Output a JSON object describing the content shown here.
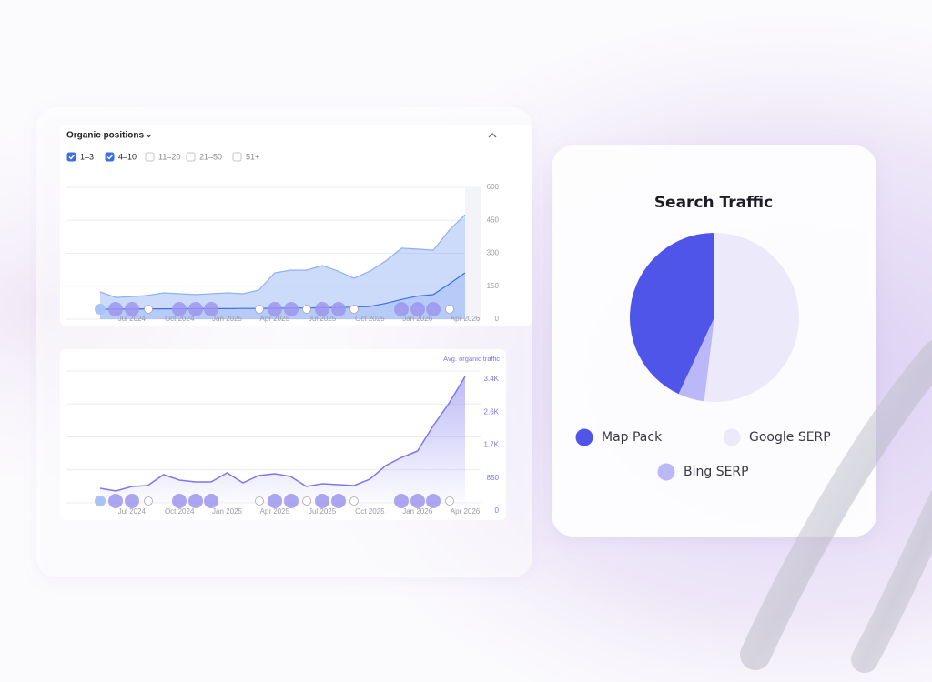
{
  "chart_data": [
    {
      "type": "area",
      "title": "Organic positions",
      "categories": [
        null,
        null,
        "Jul 2024",
        null,
        null,
        "Oct 2024",
        null,
        null,
        "Jan 2025",
        null,
        null,
        "Apr 2025",
        null,
        null,
        "Jul 2025",
        null,
        null,
        "Oct 2025",
        null,
        null,
        "Jan 2026",
        null,
        null,
        "Apr 2026"
      ],
      "series": [
        {
          "name": "1–3",
          "checked": true,
          "color": "#3d6fe8",
          "values": [
            45,
            46,
            46,
            47,
            47,
            47,
            48,
            48,
            48,
            49,
            49,
            50,
            50,
            51,
            52,
            53,
            55,
            58,
            72,
            90,
            105,
            112,
            160,
            211
          ]
        },
        {
          "name": "4–10",
          "checked": true,
          "color": "#8fb0f3",
          "values": [
            124,
            99,
            103,
            108,
            120,
            116,
            112,
            116,
            120,
            116,
            132,
            211,
            223,
            223,
            244,
            219,
            186,
            219,
            265,
            323,
            319,
            314,
            405,
            476
          ]
        }
      ],
      "filters": [
        {
          "label": "11–20",
          "checked": false
        },
        {
          "label": "21–50",
          "checked": false
        },
        {
          "label": "51+",
          "checked": false
        }
      ],
      "ylim": [
        0,
        600
      ],
      "yticks": [
        0,
        150,
        300,
        450,
        600
      ],
      "grid": true
    },
    {
      "type": "line",
      "y_label": "Avg. organic traffic",
      "categories": [
        null,
        null,
        "Jul 2024",
        null,
        null,
        "Oct 2024",
        null,
        null,
        "Jan 2025",
        null,
        null,
        "Apr 2025",
        null,
        null,
        "Jul 2025",
        null,
        null,
        "Oct 2025",
        null,
        null,
        "Jan 2026",
        null,
        null,
        "Apr 2026"
      ],
      "values": [
        375,
        305,
        422,
        445,
        727,
        586,
        539,
        539,
        774,
        516,
        703,
        750,
        680,
        422,
        492,
        469,
        445,
        610,
        961,
        1172,
        1336,
        1993,
        2579,
        3259
      ],
      "color": "#7e76ee",
      "ylim": [
        0,
        3400
      ],
      "yticks": [
        0,
        850,
        {
          "value": 1700,
          "label": "1.7K"
        },
        {
          "value": 2550,
          "label": "2.6K"
        },
        {
          "value": 3400,
          "label": "3.4K"
        }
      ],
      "grid": true
    },
    {
      "type": "pie",
      "title": "Search Traffic",
      "categories": [
        "Map Pack",
        "Google SERP",
        "Bing SERP"
      ],
      "values": [
        43,
        52,
        5
      ],
      "colors": [
        "#4f55e8",
        "#ece9fb",
        "#bab8f8"
      ]
    }
  ]
}
